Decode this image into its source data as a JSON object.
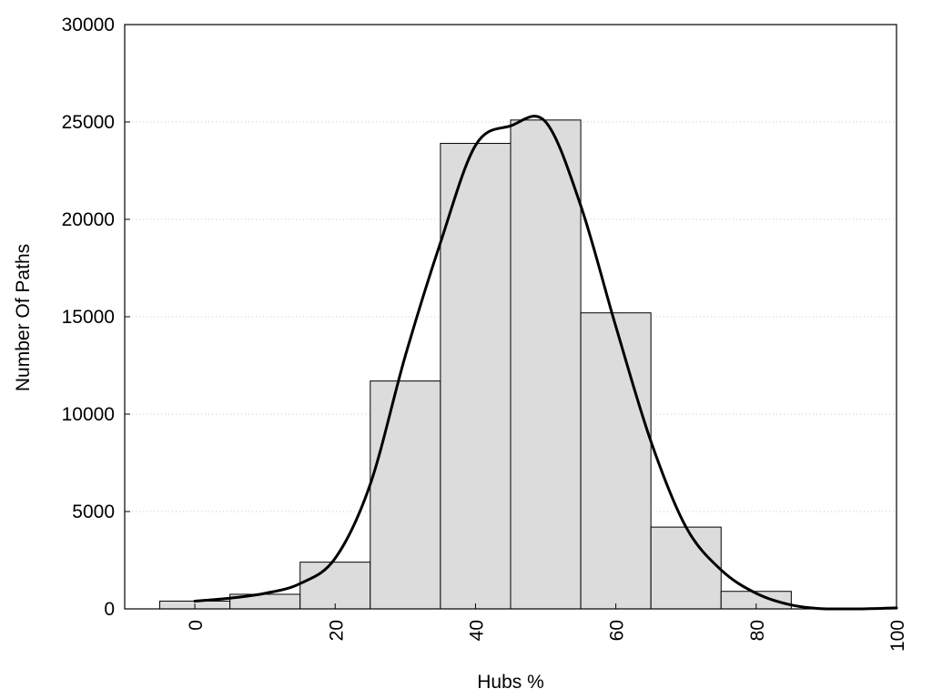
{
  "chart_data": {
    "type": "bar",
    "title": "",
    "xlabel": "Hubs %",
    "ylabel": "Number Of Paths",
    "xlim": [
      -10,
      100
    ],
    "ylim": [
      0,
      30000
    ],
    "x_ticks": [
      "0",
      "20",
      "40",
      "60",
      "80",
      "100"
    ],
    "y_ticks": [
      "0",
      "5000",
      "10000",
      "15000",
      "20000",
      "25000",
      "30000"
    ],
    "grid": "horizontal dotted",
    "legend": "none",
    "bin_width": 10,
    "bar_color": "#dcdcdc",
    "categories": [
      0,
      10,
      20,
      30,
      40,
      50,
      60,
      70,
      80,
      90,
      100
    ],
    "values": [
      400,
      750,
      2400,
      11700,
      23900,
      25100,
      15200,
      4200,
      900,
      0,
      0
    ],
    "curve": {
      "type": "line",
      "color": "#000000",
      "x": [
        0,
        5,
        10,
        15,
        20,
        25,
        30,
        35,
        40,
        45,
        50,
        55,
        60,
        65,
        70,
        75,
        80,
        85,
        90,
        95,
        100
      ],
      "y": [
        400,
        550,
        800,
        1300,
        2600,
        6400,
        13000,
        18800,
        23800,
        24800,
        25000,
        20700,
        14500,
        8600,
        4200,
        2000,
        800,
        200,
        0,
        0,
        50
      ]
    }
  }
}
